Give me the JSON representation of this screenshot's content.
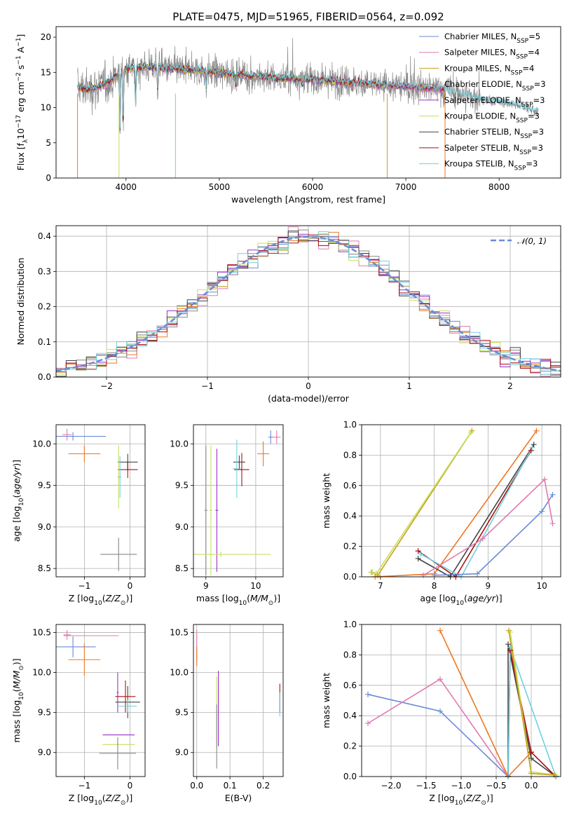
{
  "figure_title": "PLATE=0475, MJD=51965, FIBERID=0564, z=0.092",
  "colors": {
    "Chabrier MILES": "#6a8bd6",
    "Salpeter MILES": "#e07bb0",
    "Kroupa MILES": "#c8a018",
    "Chabrier ELODIE": "#888888",
    "Salpeter ELODIE": "#9b30c8",
    "Kroupa ELODIE": "#c6e060",
    "Chabrier STELIB": "#444444",
    "Salpeter STELIB": "#aa1111",
    "Kroupa STELIB": "#70d0e0",
    "orange": "#ee7722"
  },
  "chart_data": [
    {
      "id": "spectrum",
      "type": "line",
      "title": "PLATE=0475, MJD=51965, FIBERID=0564, z=0.092",
      "xlabel": "wavelength [Angstrom, rest frame]",
      "ylabel": "Flux [f_λ 10^-17 erg cm^-2 s^-1 A^-1]",
      "xlim": [
        3250,
        8660
      ],
      "ylim": [
        0,
        21.5
      ],
      "xticks": [
        4000,
        5000,
        6000,
        7000,
        8000
      ],
      "yticks": [
        0,
        5,
        10,
        15,
        20
      ],
      "grid": false,
      "legend_position": "top-right",
      "legend": [
        {
          "base": "Chabrier MILES, N",
          "sub": "SSP",
          "tail": "=5"
        },
        {
          "base": "Salpeter MILES, N",
          "sub": "SSP",
          "tail": "=4"
        },
        {
          "base": "Kroupa MILES, N",
          "sub": "SSP",
          "tail": "=4"
        },
        {
          "base": "Chabrier ELODIE, N",
          "sub": "SSP",
          "tail": "=3"
        },
        {
          "base": "Salpeter ELODIE, N",
          "sub": "SSP",
          "tail": "=3"
        },
        {
          "base": "Kroupa ELODIE, N",
          "sub": "SSP",
          "tail": "=3"
        },
        {
          "base": "Chabrier STELIB, N",
          "sub": "SSP",
          "tail": "=3"
        },
        {
          "base": "Salpeter STELIB, N",
          "sub": "SSP",
          "tail": "=3"
        },
        {
          "base": "Kroupa STELIB, N",
          "sub": "SSP",
          "tail": "=3"
        }
      ],
      "series_colors": [
        "Chabrier MILES",
        "Salpeter MILES",
        "Kroupa MILES",
        "Chabrier ELODIE",
        "Salpeter ELODIE",
        "Kroupa ELODIE",
        "Chabrier STELIB",
        "Salpeter STELIB",
        "Kroupa STELIB"
      ],
      "continuum": [
        [
          3480,
          13
        ],
        [
          3600,
          12.5
        ],
        [
          3800,
          13.5
        ],
        [
          3900,
          14.5
        ],
        [
          4000,
          15.5
        ],
        [
          4200,
          15.8
        ],
        [
          4500,
          15.5
        ],
        [
          4860,
          15.2
        ],
        [
          5200,
          14.6
        ],
        [
          5600,
          14.2
        ],
        [
          6000,
          14.0
        ],
        [
          6400,
          13.6
        ],
        [
          6700,
          13.2
        ],
        [
          7000,
          13.0
        ],
        [
          7400,
          12.6
        ],
        [
          7800,
          11.2
        ],
        [
          8200,
          10.4
        ],
        [
          8400,
          9.4
        ]
      ],
      "absorption_dips": [
        [
          3934,
          6.0
        ],
        [
          3969,
          6.5
        ],
        [
          4102,
          10.0
        ],
        [
          4340,
          12.0
        ],
        [
          4861,
          12.5
        ],
        [
          5175,
          13.0
        ],
        [
          5890,
          13.0
        ]
      ]
    },
    {
      "id": "residuals",
      "type": "histogram",
      "xlabel": "(data-model)/error",
      "ylabel": "Normed distribution",
      "xlim": [
        -2.5,
        2.5
      ],
      "ylim": [
        0,
        0.43
      ],
      "xticks": [
        -2,
        -1,
        0,
        1,
        2
      ],
      "yticks": [
        0.0,
        0.1,
        0.2,
        0.3,
        0.4
      ],
      "grid": true,
      "legend_position": "top-right",
      "reference_curve": {
        "label": "𝒩(0, 1)",
        "mean": 0,
        "sigma": 1,
        "color": "#6a8bd6"
      },
      "bin_width": 0.1
    },
    {
      "id": "age_vs_Z",
      "type": "errorbar",
      "xlabel": "Z [log10(Z/Z_sun)]",
      "ylabel": "age [log10(age/yr)]",
      "xlim": [
        -1.62,
        0.33
      ],
      "ylim": [
        8.4,
        10.23
      ],
      "xticks": [
        -1,
        0
      ],
      "yticks": [
        8.5,
        9.0,
        9.5,
        10.0
      ],
      "grid": true,
      "points": [
        {
          "c": "Chabrier MILES",
          "x": -1.25,
          "xerr": 0.72,
          "y": 10.09,
          "yerr": 0.05
        },
        {
          "c": "Salpeter MILES",
          "x": -1.38,
          "xerr": 0.1,
          "y": 10.11,
          "yerr": 0.07
        },
        {
          "c": "orange",
          "x": -1.0,
          "xerr": 0.35,
          "y": 9.88,
          "yerr": 0.1
        },
        {
          "c": "Chabrier STELIB",
          "x": -0.05,
          "xerr": 0.22,
          "y": 9.78,
          "yerr": 0.1
        },
        {
          "c": "Salpeter STELIB",
          "x": -0.05,
          "xerr": 0.22,
          "y": 9.69,
          "yerr": 0.1
        },
        {
          "c": "Kroupa ELODIE",
          "x": -0.25,
          "xerr": 0.03,
          "y": 9.6,
          "yerr": 0.38
        },
        {
          "c": "Chabrier ELODIE",
          "x": -0.25,
          "xerr": 0.4,
          "y": 8.67,
          "yerr": 0.2
        },
        {
          "c": "Kroupa STELIB",
          "x": -0.22,
          "xerr": 0.03,
          "y": 9.6,
          "yerr": 0.25
        }
      ]
    },
    {
      "id": "age_vs_mass",
      "type": "errorbar",
      "xlabel": "mass [log10(M/M_sun)]",
      "ylabel": "",
      "xlim": [
        8.75,
        10.55
      ],
      "ylim": [
        8.4,
        10.23
      ],
      "xticks": [
        9,
        10
      ],
      "yticks": [
        8.5,
        9.0,
        9.5,
        10.0
      ],
      "grid": true,
      "points": [
        {
          "c": "Chabrier MILES",
          "x": 10.3,
          "xerr": 0.05,
          "y": 10.08,
          "yerr": 0.08
        },
        {
          "c": "Salpeter MILES",
          "x": 10.42,
          "xerr": 0.08,
          "y": 10.08,
          "yerr": 0.08
        },
        {
          "c": "orange",
          "x": 10.15,
          "xerr": 0.12,
          "y": 9.88,
          "yerr": 0.15
        },
        {
          "c": "Kroupa ELODIE",
          "x": 9.1,
          "xerr": 0.03,
          "y": 9.2,
          "yerr": 0.78
        },
        {
          "c": "Salpeter ELODIE",
          "x": 9.22,
          "xerr": 0.03,
          "y": 9.2,
          "yerr": 0.74
        },
        {
          "c": "Chabrier ELODIE",
          "x": 9.0,
          "xerr": 0.03,
          "y": 9.2,
          "yerr": 0.78
        },
        {
          "c": "Kroupa ELODIE",
          "x": 9.3,
          "xerr": 1.0,
          "y": 8.67,
          "yerr": 0.03
        },
        {
          "c": "Chabrier STELIB",
          "x": 9.67,
          "xerr": 0.12,
          "y": 9.78,
          "yerr": 0.08
        },
        {
          "c": "Salpeter STELIB",
          "x": 9.72,
          "xerr": 0.15,
          "y": 9.69,
          "yerr": 0.2
        },
        {
          "c": "Kroupa STELIB",
          "x": 9.62,
          "xerr": 0.08,
          "y": 9.7,
          "yerr": 0.35
        }
      ]
    },
    {
      "id": "massweight_vs_age",
      "type": "line",
      "xlabel": "age [log10(age/yr)]",
      "ylabel": "mass weight",
      "xlim": [
        6.65,
        10.35
      ],
      "ylim": [
        0,
        1
      ],
      "xticks": [
        7,
        8,
        9,
        10
      ],
      "yticks": [
        0.0,
        0.2,
        0.4,
        0.6,
        0.8,
        1.0
      ],
      "grid": true,
      "series": [
        {
          "c": "Kroupa MILES",
          "x": [
            6.83,
            6.95,
            8.7
          ],
          "y": [
            0.03,
            0.01,
            0.96
          ]
        },
        {
          "c": "Kroupa ELODIE",
          "x": [
            6.85,
            6.92,
            8.68
          ],
          "y": [
            0.03,
            0.02,
            0.95
          ]
        },
        {
          "c": "orange",
          "x": [
            6.9,
            8.0,
            9.9
          ],
          "y": [
            0.0,
            0.02,
            0.96
          ]
        },
        {
          "c": "Chabrier STELIB",
          "x": [
            7.7,
            8.3,
            9.85
          ],
          "y": [
            0.12,
            0.0,
            0.87
          ]
        },
        {
          "c": "Salpeter STELIB",
          "x": [
            7.7,
            8.4,
            9.8
          ],
          "y": [
            0.17,
            0.0,
            0.83
          ]
        },
        {
          "c": "Kroupa STELIB",
          "x": [
            7.75,
            8.5,
            9.82
          ],
          "y": [
            0.15,
            0.0,
            0.85
          ]
        },
        {
          "c": "Chabrier MILES",
          "x": [
            8.0,
            8.8,
            10.0,
            10.2
          ],
          "y": [
            0.01,
            0.02,
            0.43,
            0.54
          ]
        },
        {
          "c": "Salpeter MILES",
          "x": [
            7.8,
            8.9,
            10.05,
            10.2
          ],
          "y": [
            0.01,
            0.25,
            0.64,
            0.35
          ]
        }
      ]
    },
    {
      "id": "mass_vs_Z",
      "type": "errorbar",
      "xlabel": "Z [log10(Z/Z_sun)]",
      "ylabel": "mass [log10(M/M_sun)]",
      "xlim": [
        -1.62,
        0.33
      ],
      "ylim": [
        8.7,
        10.6
      ],
      "xticks": [
        -1,
        0
      ],
      "yticks": [
        9.0,
        9.5,
        10.0,
        10.5
      ],
      "grid": true,
      "points": [
        {
          "c": "Salpeter MILES",
          "x": -1.38,
          "xerr": 0.08,
          "y": 10.47,
          "yerr": 0.06
        },
        {
          "c": "Salpeter MILES",
          "x": -0.85,
          "xerr": 0.6,
          "y": 10.46,
          "yerr": 0.0
        },
        {
          "c": "Chabrier MILES",
          "x": -1.25,
          "xerr": 0.5,
          "y": 10.32,
          "yerr": 0.13
        },
        {
          "c": "orange",
          "x": -1.0,
          "xerr": 0.35,
          "y": 10.16,
          "yerr": 0.2
        },
        {
          "c": "Salpeter ELODIE",
          "x": -0.27,
          "xerr": 0.02,
          "y": 9.75,
          "yerr": 0.25
        },
        {
          "c": "Chabrier STELIB",
          "x": -0.05,
          "xerr": 0.27,
          "y": 9.63,
          "yerr": 0.2
        },
        {
          "c": "Salpeter STELIB",
          "x": -0.1,
          "xerr": 0.22,
          "y": 9.7,
          "yerr": 0.2
        },
        {
          "c": "Kroupa STELIB",
          "x": -0.05,
          "xerr": 0.2,
          "y": 9.58,
          "yerr": 0.08
        },
        {
          "c": "Salpeter ELODIE",
          "x": -0.25,
          "xerr": 0.35,
          "y": 9.22,
          "yerr": 0.0
        },
        {
          "c": "Kroupa ELODIE",
          "x": -0.25,
          "xerr": 0.35,
          "y": 9.1,
          "yerr": 0.0
        },
        {
          "c": "Chabrier ELODIE",
          "x": -0.27,
          "xerr": 0.4,
          "y": 8.99,
          "yerr": 0.2
        }
      ]
    },
    {
      "id": "mass_vs_ebv",
      "type": "errorbar",
      "xlabel": "E(B-V)",
      "ylabel": "",
      "xlim": [
        -0.01,
        0.26
      ],
      "ylim": [
        8.7,
        10.6
      ],
      "xticks": [
        0.0,
        0.1,
        0.2
      ],
      "yticks": [
        9.0,
        9.5,
        10.0,
        10.5
      ],
      "grid": true,
      "points": [
        {
          "c": "Salpeter MILES",
          "x": 0.0,
          "xerr": 0,
          "y": 10.35,
          "yerr": 0.18
        },
        {
          "c": "orange",
          "x": 0.0,
          "xerr": 0,
          "y": 10.2,
          "yerr": 0.12
        },
        {
          "c": "Kroupa ELODIE",
          "x": 0.06,
          "xerr": 0,
          "y": 9.5,
          "yerr": 0.45
        },
        {
          "c": "Salpeter ELODIE",
          "x": 0.065,
          "xerr": 0,
          "y": 9.55,
          "yerr": 0.47
        },
        {
          "c": "Chabrier ELODIE",
          "x": 0.06,
          "xerr": 0,
          "y": 9.2,
          "yerr": 0.4
        },
        {
          "c": "Salpeter STELIB",
          "x": 0.25,
          "xerr": 0,
          "y": 9.68,
          "yerr": 0.18
        },
        {
          "c": "Kroupa STELIB",
          "x": 0.25,
          "xerr": 0,
          "y": 9.6,
          "yerr": 0.15
        }
      ]
    },
    {
      "id": "massweight_vs_Z",
      "type": "line",
      "xlabel": "Z [log10(Z/Z_sun)]",
      "ylabel": "mass weight",
      "xlim": [
        -2.42,
        0.42
      ],
      "ylim": [
        0,
        1
      ],
      "xticks": [
        -2.0,
        -1.5,
        -1.0,
        -0.5,
        0.0
      ],
      "yticks": [
        0.0,
        0.2,
        0.4,
        0.6,
        0.8,
        1.0
      ],
      "grid": true,
      "series": [
        {
          "c": "Chabrier MILES",
          "x": [
            -2.33,
            -1.3,
            -0.33
          ],
          "y": [
            0.54,
            0.43,
            0.0
          ]
        },
        {
          "c": "Salpeter MILES",
          "x": [
            -2.33,
            -1.3,
            -0.33
          ],
          "y": [
            0.35,
            0.64,
            0.0
          ]
        },
        {
          "c": "orange",
          "x": [
            -1.3,
            -0.33,
            0.0
          ],
          "y": [
            0.96,
            0.0,
            0.16
          ]
        },
        {
          "c": "Chabrier STELIB",
          "x": [
            -0.33,
            -0.33,
            0.0,
            0.35
          ],
          "y": [
            0.0,
            0.87,
            0.12,
            0.0
          ]
        },
        {
          "c": "Salpeter STELIB",
          "x": [
            -0.33,
            -0.3,
            0.0,
            0.35
          ],
          "y": [
            0.0,
            0.83,
            0.16,
            0.0
          ]
        },
        {
          "c": "Kroupa STELIB",
          "x": [
            -0.33,
            -0.3,
            0.35
          ],
          "y": [
            0.0,
            0.85,
            0.0
          ]
        },
        {
          "c": "Kroupa ELODIE",
          "x": [
            -0.3,
            0.0,
            0.35
          ],
          "y": [
            0.95,
            0.03,
            0.01
          ]
        },
        {
          "c": "Kroupa MILES",
          "x": [
            -0.32,
            0.0,
            0.33
          ],
          "y": [
            0.96,
            0.02,
            0.01
          ]
        }
      ]
    }
  ]
}
